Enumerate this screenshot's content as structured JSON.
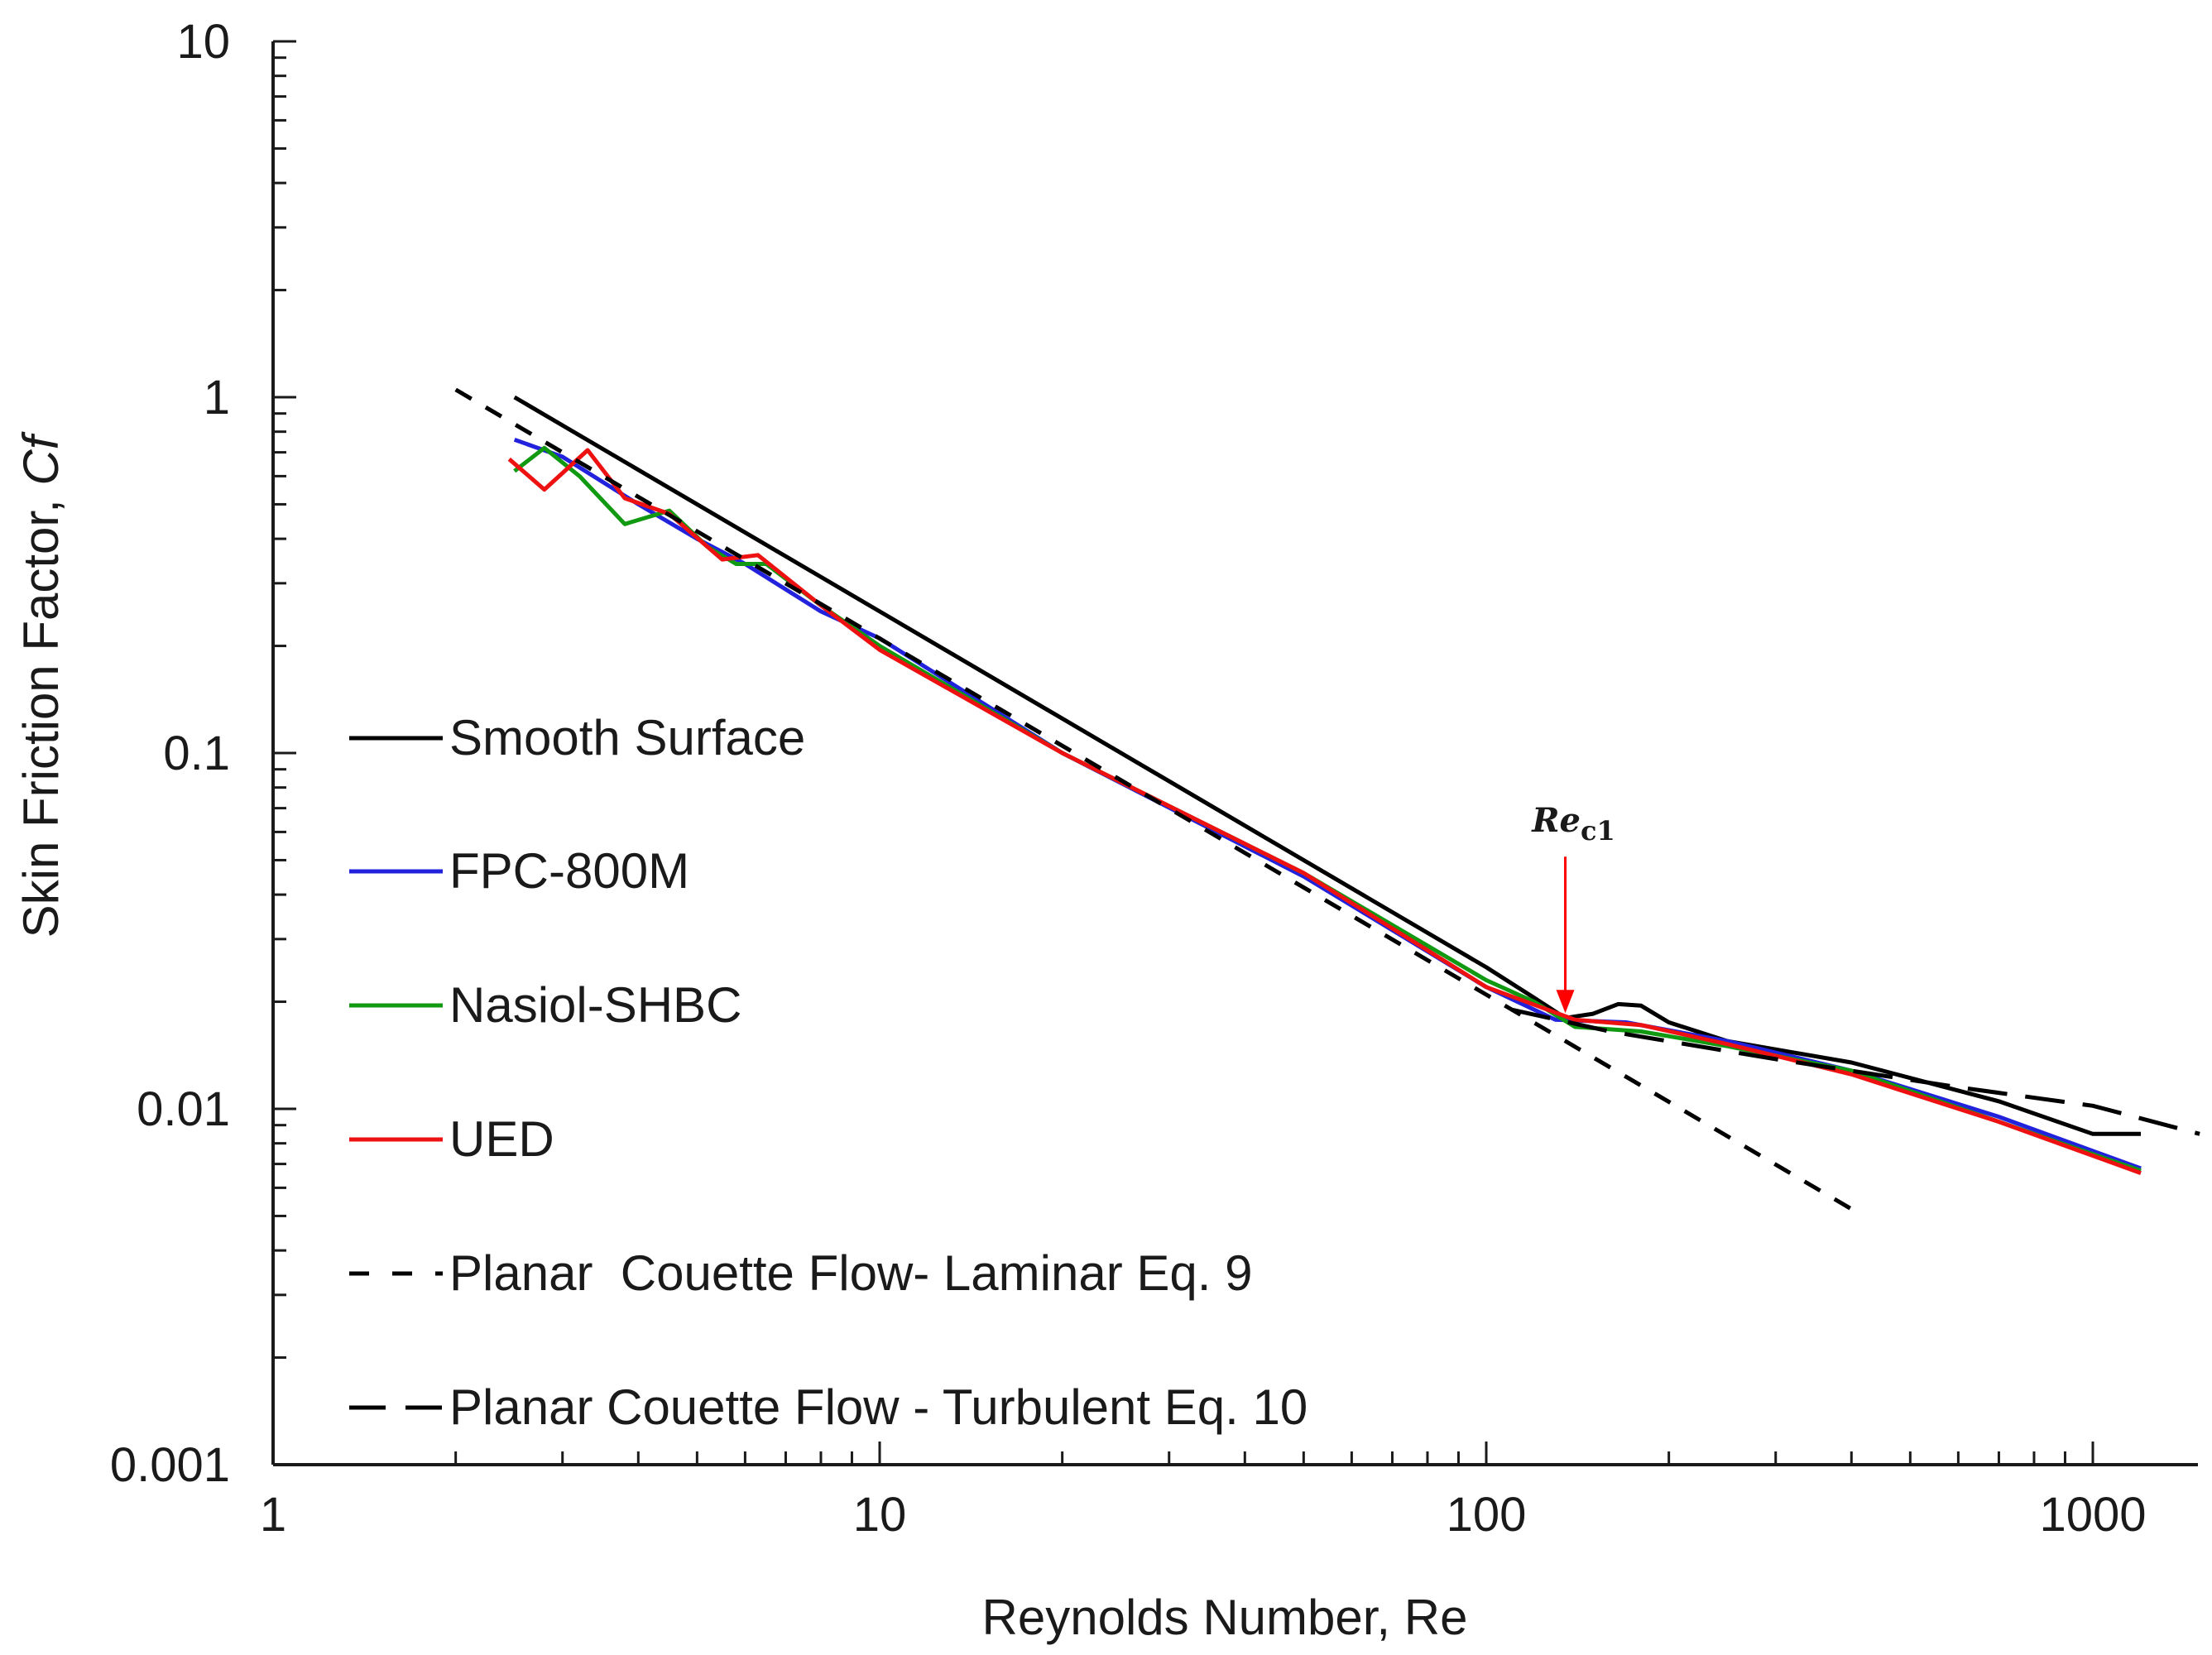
{
  "chart_data": {
    "type": "line",
    "xscale": "log",
    "yscale": "log",
    "xlim": [
      1,
      1500
    ],
    "ylim": [
      0.001,
      10
    ],
    "xlabel": "Reynolds Number, Re",
    "ylabel": "Skin Friction Factor, ",
    "ylabel_symbol": "Cf",
    "x_tick_labels": [
      "1",
      "10",
      "100",
      "1000"
    ],
    "y_tick_labels": [
      "0.001",
      "0.01",
      "0.1",
      "1",
      "10"
    ],
    "x_ticks": [
      1,
      10,
      100,
      1000
    ],
    "y_ticks": [
      0.001,
      0.01,
      0.1,
      1,
      10
    ],
    "legend_position": "left",
    "annotation": {
      "text": "Re",
      "sub": "c1",
      "x": 135,
      "y": 0.018,
      "color": "#ff0000"
    },
    "series": [
      {
        "name": "Smooth Surface",
        "color": "#000000",
        "dash": "solid",
        "points": [
          [
            2.5,
            1.0
          ],
          [
            10,
            0.25
          ],
          [
            100,
            0.025
          ],
          [
            120,
            0.0205
          ],
          [
            135,
            0.018
          ],
          [
            150,
            0.0185
          ],
          [
            165,
            0.0197
          ],
          [
            180,
            0.0195
          ],
          [
            200,
            0.0175
          ],
          [
            250,
            0.0155
          ],
          [
            400,
            0.0135
          ],
          [
            700,
            0.0105
          ],
          [
            1000,
            0.0085
          ],
          [
            1200,
            0.0085
          ]
        ]
      },
      {
        "name": "FPC-800M",
        "color": "#2222dd",
        "dash": "solid",
        "points": [
          [
            2.5,
            0.76
          ],
          [
            3,
            0.68
          ],
          [
            4,
            0.5
          ],
          [
            5,
            0.4
          ],
          [
            6,
            0.34
          ],
          [
            8,
            0.25
          ],
          [
            10,
            0.21
          ],
          [
            20,
            0.1
          ],
          [
            50,
            0.045
          ],
          [
            100,
            0.022
          ],
          [
            130,
            0.0178
          ],
          [
            170,
            0.0175
          ],
          [
            250,
            0.0155
          ],
          [
            400,
            0.0128
          ],
          [
            700,
            0.0095
          ],
          [
            1200,
            0.0068
          ]
        ]
      },
      {
        "name": "Nasiol-SHBC",
        "color": "#119911",
        "dash": "solid",
        "points": [
          [
            2.5,
            0.62
          ],
          [
            2.8,
            0.72
          ],
          [
            3.2,
            0.6
          ],
          [
            3.8,
            0.44
          ],
          [
            4.5,
            0.48
          ],
          [
            5.2,
            0.38
          ],
          [
            5.8,
            0.34
          ],
          [
            6.5,
            0.34
          ],
          [
            8,
            0.26
          ],
          [
            10,
            0.2
          ],
          [
            20,
            0.1
          ],
          [
            50,
            0.046
          ],
          [
            100,
            0.023
          ],
          [
            120,
            0.02
          ],
          [
            140,
            0.017
          ],
          [
            180,
            0.0165
          ],
          [
            250,
            0.015
          ],
          [
            400,
            0.0128
          ],
          [
            700,
            0.0092
          ],
          [
            1200,
            0.0067
          ]
        ]
      },
      {
        "name": "UED",
        "color": "#ee1111",
        "dash": "solid",
        "points": [
          [
            2.45,
            0.67
          ],
          [
            2.8,
            0.55
          ],
          [
            3.3,
            0.71
          ],
          [
            3.8,
            0.52
          ],
          [
            4.5,
            0.47
          ],
          [
            5.5,
            0.35
          ],
          [
            6.3,
            0.36
          ],
          [
            8,
            0.26
          ],
          [
            10,
            0.195
          ],
          [
            20,
            0.1
          ],
          [
            50,
            0.046
          ],
          [
            100,
            0.022
          ],
          [
            140,
            0.0178
          ],
          [
            180,
            0.0172
          ],
          [
            250,
            0.0152
          ],
          [
            400,
            0.0125
          ],
          [
            700,
            0.0092
          ],
          [
            1200,
            0.0066
          ]
        ]
      },
      {
        "name": "Planar  Couette Flow- Laminar Eq. 9",
        "color": "#000000",
        "dash": "short",
        "points": [
          [
            2,
            1.05
          ],
          [
            410,
            0.0051
          ]
        ]
      },
      {
        "name": "Planar Couette Flow - Turbulent Eq. 10",
        "color": "#000000",
        "dash": "long",
        "points": [
          [
            110,
            0.019
          ],
          [
            160,
            0.0165
          ],
          [
            300,
            0.0138
          ],
          [
            600,
            0.0115
          ],
          [
            1000,
            0.0102
          ],
          [
            1500,
            0.0085
          ]
        ]
      }
    ]
  }
}
